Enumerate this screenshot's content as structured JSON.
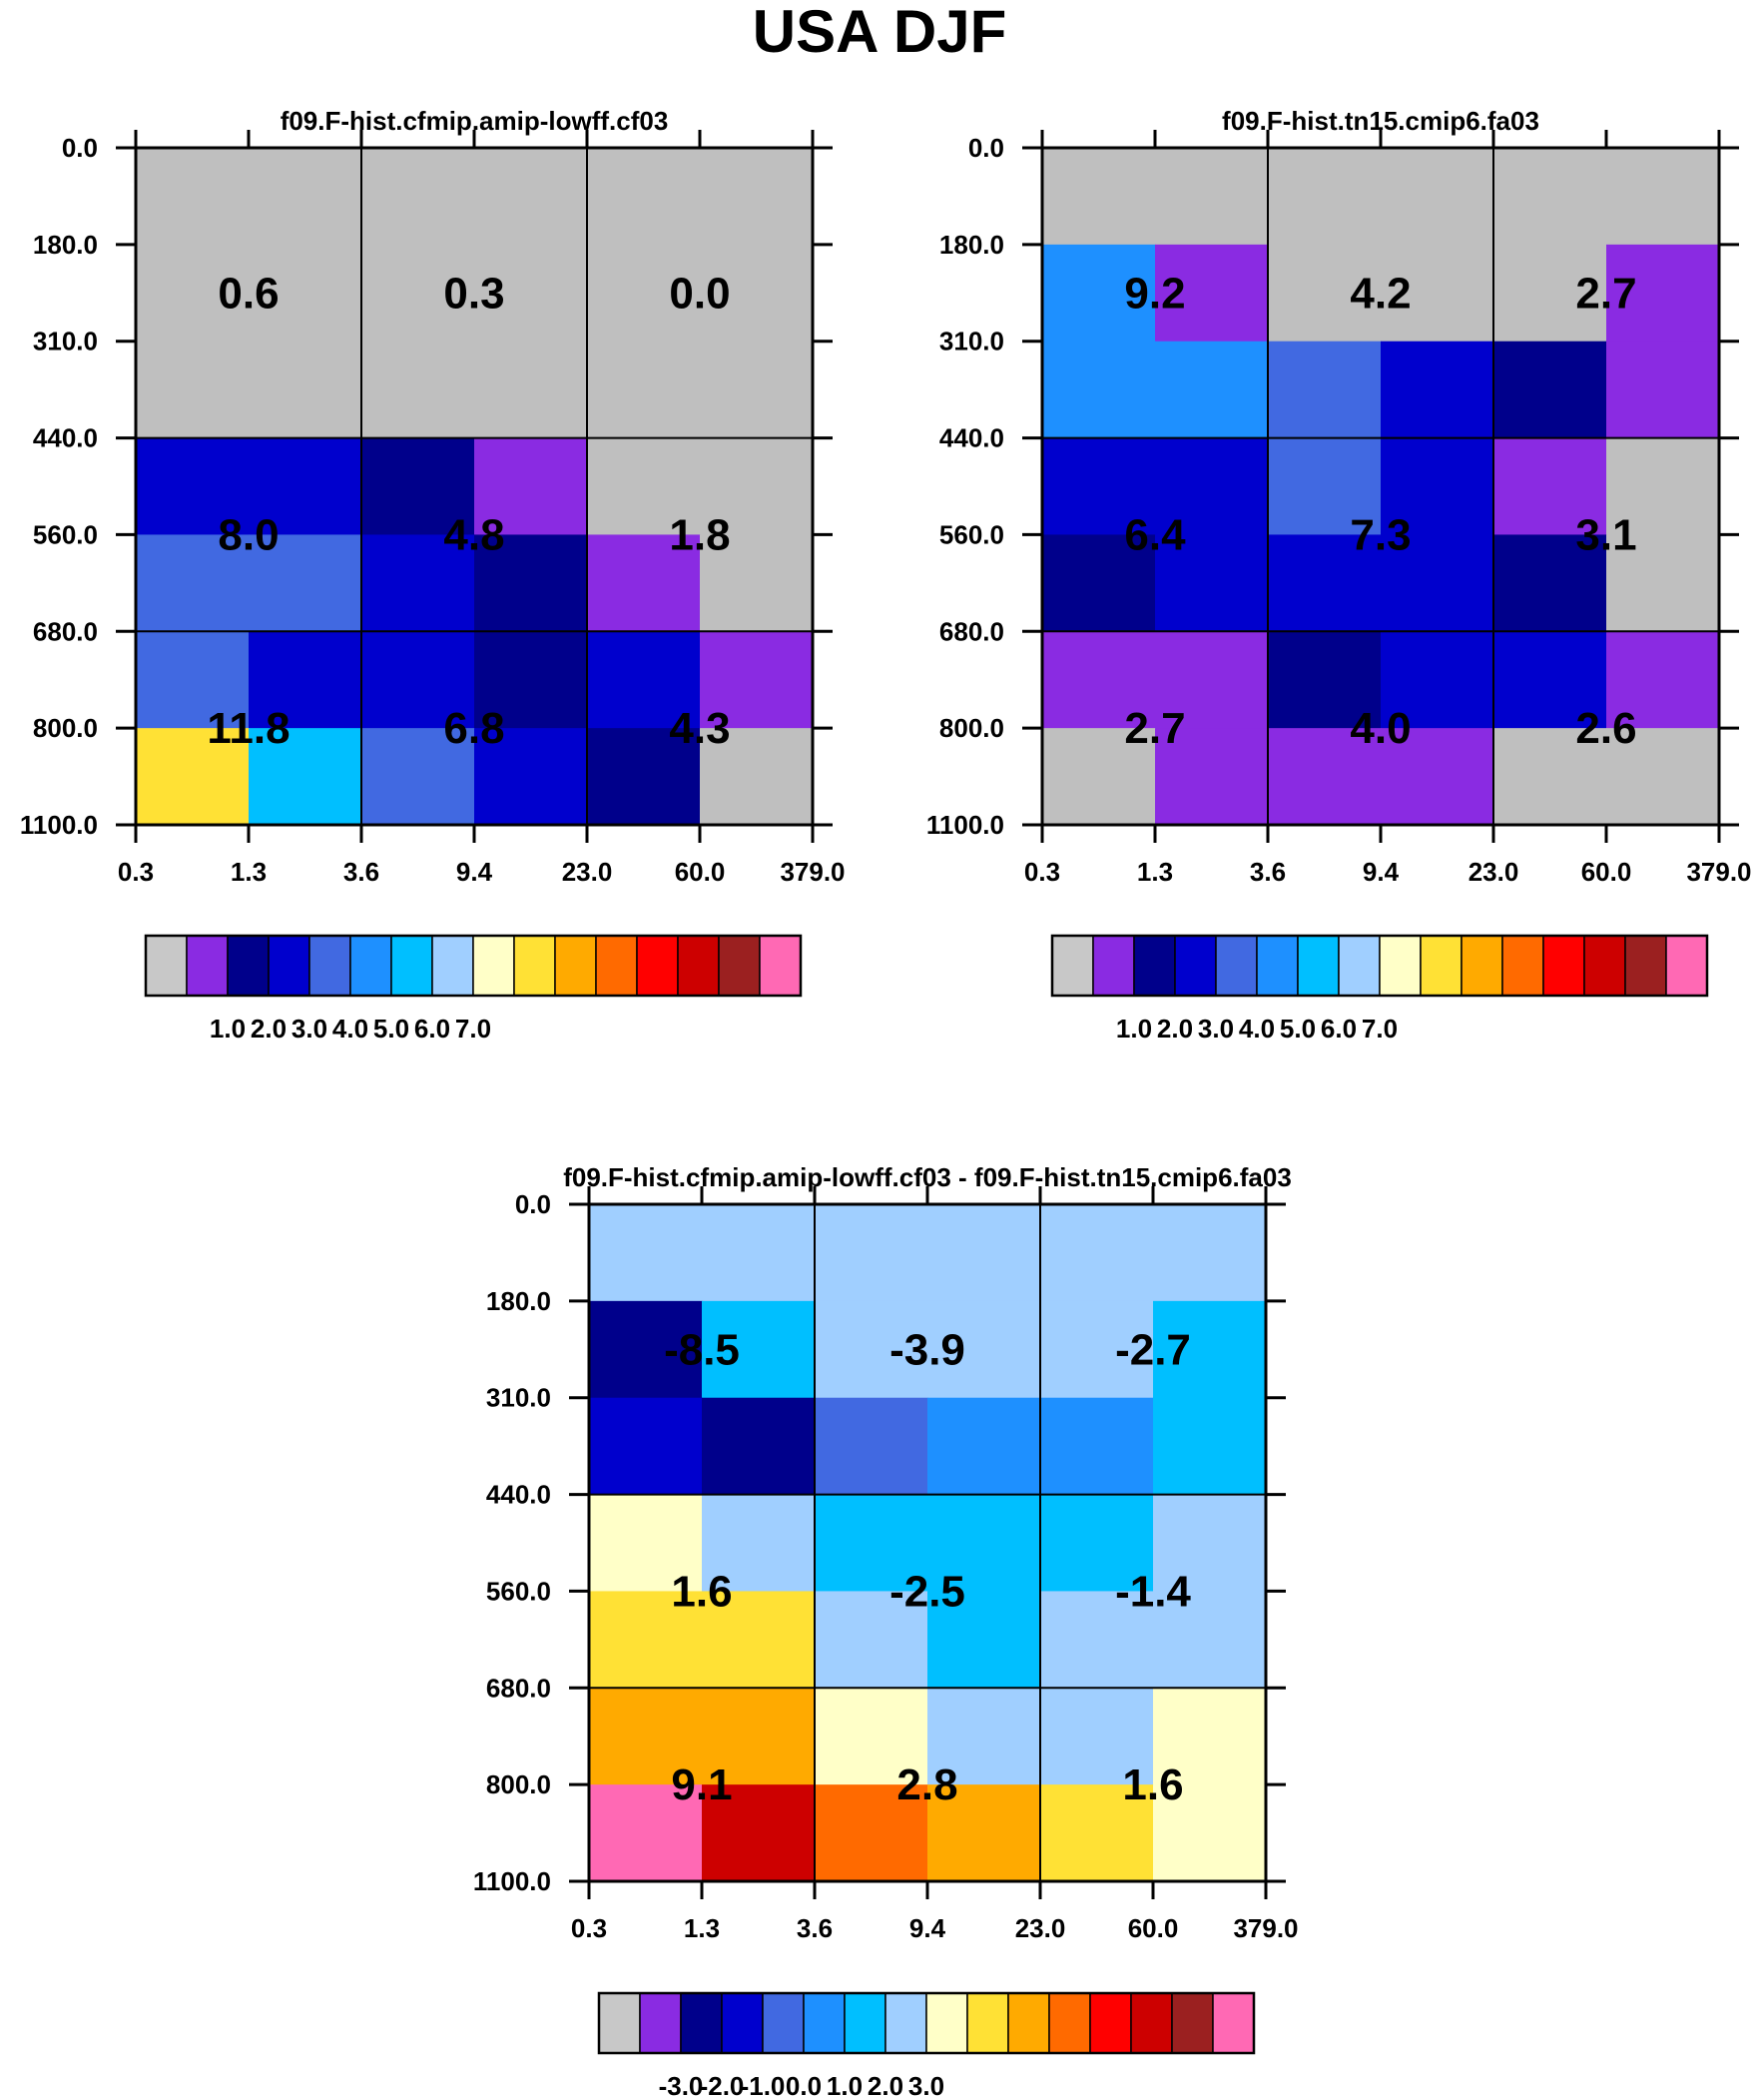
{
  "figure": {
    "title": "USA DJF"
  },
  "chart_data": [
    {
      "type": "heatmap",
      "title": "f09.F-hist.cfmip.amip-lowff.cf03",
      "x_ticks": [
        "0.3",
        "1.3",
        "3.6",
        "9.4",
        "23.0",
        "60.0",
        "379.0"
      ],
      "y_ticks": [
        "0.0",
        "180.0",
        "310.0",
        "440.0",
        "560.0",
        "680.0",
        "800.0",
        "1100.0"
      ],
      "fine_grid_colors": [
        [
          "#bfbfbf",
          "#bfbfbf",
          "#bfbfbf",
          "#bfbfbf",
          "#bfbfbf",
          "#bfbfbf"
        ],
        [
          "#bfbfbf",
          "#bfbfbf",
          "#bfbfbf",
          "#bfbfbf",
          "#bfbfbf",
          "#bfbfbf"
        ],
        [
          "#bfbfbf",
          "#bfbfbf",
          "#bfbfbf",
          "#bfbfbf",
          "#bfbfbf",
          "#bfbfbf"
        ],
        [
          "#0000cd",
          "#0000cd",
          "#00008b",
          "#8a2be2",
          "#bfbfbf",
          "#bfbfbf"
        ],
        [
          "#4169e1",
          "#4169e1",
          "#0000cd",
          "#00008b",
          "#8a2be2",
          "#bfbfbf"
        ],
        [
          "#4169e1",
          "#0000cd",
          "#0000cd",
          "#00008b",
          "#0000cd",
          "#8a2be2"
        ],
        [
          "#ffe135",
          "#00bfff",
          "#4169e1",
          "#0000cd",
          "#00008b",
          "#bfbfbf"
        ]
      ],
      "cell_values": [
        [
          "0.6",
          "0.3",
          "0.0"
        ],
        [
          "8.0",
          "4.8",
          "1.8"
        ],
        [
          "11.8",
          "6.8",
          "4.3"
        ]
      ],
      "colorbar": {
        "colors": [
          "#c8c8c8",
          "#8a2be2",
          "#00008b",
          "#0000cd",
          "#4169e1",
          "#1e90ff",
          "#00bfff",
          "#a0cfff",
          "#ffffc8",
          "#ffe135",
          "#ffaa00",
          "#ff6a00",
          "#ff0000",
          "#cd0000",
          "#9b2020",
          "#ff69b4"
        ],
        "labels": [
          "1.0",
          "2.0",
          "3.0",
          "4.0",
          "5.0",
          "6.0",
          "7.0"
        ]
      }
    },
    {
      "type": "heatmap",
      "title": "f09.F-hist.tn15.cmip6.fa03",
      "x_ticks": [
        "0.3",
        "1.3",
        "3.6",
        "9.4",
        "23.0",
        "60.0",
        "379.0"
      ],
      "y_ticks": [
        "0.0",
        "180.0",
        "310.0",
        "440.0",
        "560.0",
        "680.0",
        "800.0",
        "1100.0"
      ],
      "fine_grid_colors": [
        [
          "#bfbfbf",
          "#bfbfbf",
          "#bfbfbf",
          "#bfbfbf",
          "#bfbfbf",
          "#bfbfbf"
        ],
        [
          "#1e90ff",
          "#8a2be2",
          "#bfbfbf",
          "#bfbfbf",
          "#bfbfbf",
          "#8a2be2"
        ],
        [
          "#1e90ff",
          "#1e90ff",
          "#4169e1",
          "#0000cd",
          "#00008b",
          "#8a2be2"
        ],
        [
          "#0000cd",
          "#0000cd",
          "#4169e1",
          "#0000cd",
          "#8a2be2",
          "#bfbfbf"
        ],
        [
          "#00008b",
          "#0000cd",
          "#0000cd",
          "#0000cd",
          "#00008b",
          "#bfbfbf"
        ],
        [
          "#8a2be2",
          "#8a2be2",
          "#00008b",
          "#0000cd",
          "#0000cd",
          "#8a2be2"
        ],
        [
          "#bfbfbf",
          "#8a2be2",
          "#8a2be2",
          "#8a2be2",
          "#bfbfbf",
          "#bfbfbf"
        ]
      ],
      "cell_values": [
        [
          "9.2",
          "4.2",
          "2.7"
        ],
        [
          "6.4",
          "7.3",
          "3.1"
        ],
        [
          "2.7",
          "4.0",
          "2.6"
        ]
      ],
      "colorbar": {
        "colors": [
          "#c8c8c8",
          "#8a2be2",
          "#00008b",
          "#0000cd",
          "#4169e1",
          "#1e90ff",
          "#00bfff",
          "#a0cfff",
          "#ffffc8",
          "#ffe135",
          "#ffaa00",
          "#ff6a00",
          "#ff0000",
          "#cd0000",
          "#9b2020",
          "#ff69b4"
        ],
        "labels": [
          "1.0",
          "2.0",
          "3.0",
          "4.0",
          "5.0",
          "6.0",
          "7.0"
        ]
      }
    },
    {
      "type": "heatmap",
      "title": "f09.F-hist.cfmip.amip-lowff.cf03 - f09.F-hist.tn15.cmip6.fa03",
      "x_ticks": [
        "0.3",
        "1.3",
        "3.6",
        "9.4",
        "23.0",
        "60.0",
        "379.0"
      ],
      "y_ticks": [
        "0.0",
        "180.0",
        "310.0",
        "440.0",
        "560.0",
        "680.0",
        "800.0",
        "1100.0"
      ],
      "fine_grid_colors": [
        [
          "#a0cfff",
          "#a0cfff",
          "#a0cfff",
          "#a0cfff",
          "#a0cfff",
          "#a0cfff"
        ],
        [
          "#00008b",
          "#00bfff",
          "#a0cfff",
          "#a0cfff",
          "#a0cfff",
          "#00bfff"
        ],
        [
          "#0000cd",
          "#00008b",
          "#4169e1",
          "#1e90ff",
          "#1e90ff",
          "#00bfff"
        ],
        [
          "#ffffc8",
          "#a0cfff",
          "#00bfff",
          "#00bfff",
          "#00bfff",
          "#a0cfff"
        ],
        [
          "#ffe135",
          "#ffe135",
          "#a0cfff",
          "#00bfff",
          "#a0cfff",
          "#a0cfff"
        ],
        [
          "#ffaa00",
          "#ffaa00",
          "#ffffc8",
          "#a0cfff",
          "#a0cfff",
          "#ffffc8"
        ],
        [
          "#ff69b4",
          "#cd0000",
          "#ff6a00",
          "#ffaa00",
          "#ffe135",
          "#ffffc8"
        ]
      ],
      "cell_values": [
        [
          "-8.5",
          "-3.9",
          "-2.7"
        ],
        [
          "1.6",
          "-2.5",
          "-1.4"
        ],
        [
          "9.1",
          "2.8",
          "1.6"
        ]
      ],
      "colorbar": {
        "colors": [
          "#c8c8c8",
          "#8a2be2",
          "#00008b",
          "#0000cd",
          "#4169e1",
          "#1e90ff",
          "#00bfff",
          "#a0cfff",
          "#ffffc8",
          "#ffe135",
          "#ffaa00",
          "#ff6a00",
          "#ff0000",
          "#cd0000",
          "#9b2020",
          "#ff69b4"
        ],
        "labels": [
          "-3.0",
          "-2.0",
          "-1.0",
          "0.0",
          "1.0",
          "2.0",
          "3.0"
        ]
      }
    }
  ]
}
